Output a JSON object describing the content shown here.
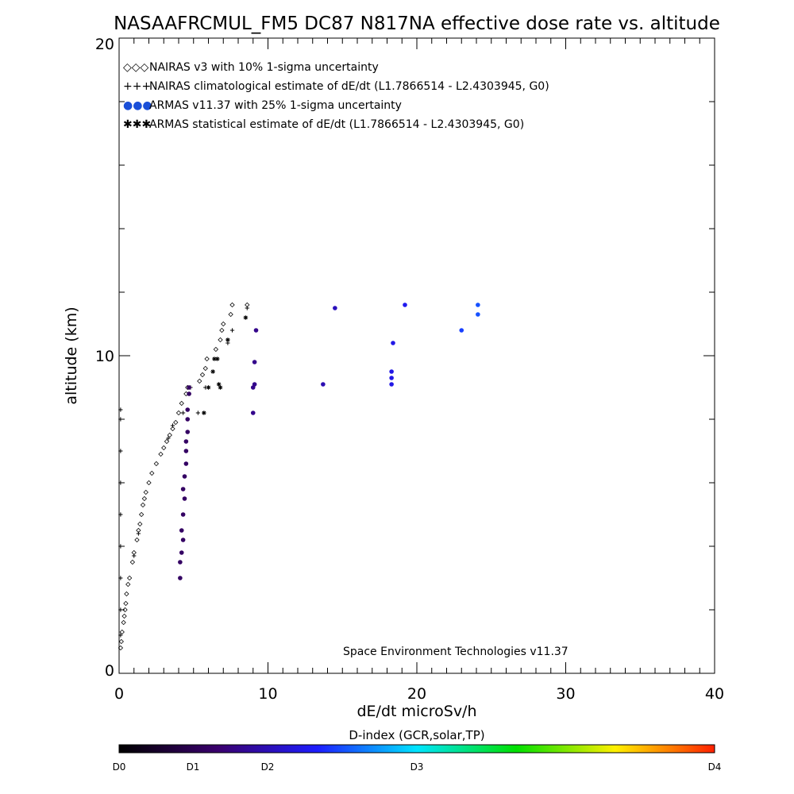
{
  "chart_data": {
    "type": "scatter",
    "title": "NASAAFRCMUL_FM5 DC87 N817NA effective dose rate vs. altitude",
    "xlabel": "dE/dt microSv/h",
    "ylabel": "altitude (km)",
    "xlim": [
      0,
      40
    ],
    "ylim": [
      0,
      20
    ],
    "x_ticks": [
      "0",
      "10",
      "20",
      "30",
      "40"
    ],
    "y_ticks": [
      "0",
      "10",
      "20"
    ],
    "grid": false,
    "legend_position": "top-left",
    "credit": "Space Environment Technologies v11.37",
    "series": [
      {
        "name": "NAIRAS v3 with 10% 1-sigma uncertainty",
        "marker": "◇◇◇",
        "color": "#000000",
        "points": [
          [
            0.1,
            0.8
          ],
          [
            0.15,
            1.0
          ],
          [
            0.2,
            1.3
          ],
          [
            0.3,
            1.6
          ],
          [
            0.35,
            1.8
          ],
          [
            0.4,
            2.0
          ],
          [
            0.45,
            2.2
          ],
          [
            0.5,
            2.5
          ],
          [
            0.6,
            2.8
          ],
          [
            0.7,
            3.0
          ],
          [
            0.9,
            3.5
          ],
          [
            1.0,
            3.8
          ],
          [
            1.2,
            4.2
          ],
          [
            1.3,
            4.5
          ],
          [
            1.4,
            4.7
          ],
          [
            1.5,
            5.0
          ],
          [
            1.6,
            5.3
          ],
          [
            1.7,
            5.5
          ],
          [
            1.8,
            5.7
          ],
          [
            2.0,
            6.0
          ],
          [
            2.2,
            6.3
          ],
          [
            2.5,
            6.6
          ],
          [
            2.8,
            6.9
          ],
          [
            3.0,
            7.1
          ],
          [
            3.2,
            7.3
          ],
          [
            3.4,
            7.5
          ],
          [
            3.6,
            7.7
          ],
          [
            3.8,
            7.9
          ],
          [
            4.0,
            8.2
          ],
          [
            4.2,
            8.5
          ],
          [
            4.5,
            8.8
          ],
          [
            4.6,
            9.0
          ],
          [
            5.4,
            9.2
          ],
          [
            5.6,
            9.4
          ],
          [
            5.8,
            9.6
          ],
          [
            5.9,
            9.9
          ],
          [
            6.5,
            10.2
          ],
          [
            6.8,
            10.5
          ],
          [
            6.9,
            10.8
          ],
          [
            7.0,
            11.0
          ],
          [
            7.5,
            11.3
          ],
          [
            7.6,
            11.6
          ],
          [
            8.6,
            11.6
          ]
        ]
      },
      {
        "name": "NAIRAS climatological estimate of dE/dt (L1.7866514 - L2.4303945, G0)",
        "marker": "+++",
        "color": "#000000",
        "points": [
          [
            0.1,
            1.2
          ],
          [
            0.1,
            2.0
          ],
          [
            0.1,
            3.0
          ],
          [
            0.1,
            4.0
          ],
          [
            0.1,
            5.0
          ],
          [
            0.1,
            6.0
          ],
          [
            0.1,
            7.0
          ],
          [
            0.1,
            8.0
          ],
          [
            0.1,
            8.3
          ],
          [
            1.0,
            3.7
          ],
          [
            1.3,
            4.4
          ],
          [
            3.3,
            7.4
          ],
          [
            3.6,
            7.8
          ],
          [
            4.3,
            8.2
          ],
          [
            4.8,
            9.0
          ],
          [
            5.3,
            8.2
          ],
          [
            5.8,
            9.0
          ],
          [
            7.3,
            10.4
          ],
          [
            7.6,
            10.8
          ],
          [
            8.6,
            11.5
          ]
        ]
      },
      {
        "name": "ARMAS v11.37 with 25% 1-sigma uncertainty",
        "marker": "●●●",
        "color": "#1a4fd8",
        "points": [
          [
            4.1,
            3.0
          ],
          [
            4.1,
            3.5
          ],
          [
            4.2,
            3.8
          ],
          [
            4.3,
            4.2
          ],
          [
            4.2,
            4.5
          ],
          [
            4.3,
            5.0
          ],
          [
            4.4,
            5.5
          ],
          [
            4.3,
            5.8
          ],
          [
            4.4,
            6.2
          ],
          [
            4.5,
            6.6
          ],
          [
            4.5,
            7.0
          ],
          [
            4.5,
            7.3
          ],
          [
            4.6,
            7.6
          ],
          [
            4.6,
            8.0
          ],
          [
            4.6,
            8.3
          ],
          [
            4.7,
            8.8
          ],
          [
            4.7,
            9.0
          ],
          [
            9.0,
            8.2
          ],
          [
            9.0,
            9.0
          ],
          [
            9.1,
            9.1
          ],
          [
            9.1,
            9.8
          ],
          [
            9.2,
            10.8
          ],
          [
            13.7,
            9.1
          ],
          [
            14.5,
            11.5
          ],
          [
            18.3,
            9.1
          ],
          [
            18.3,
            9.3
          ],
          [
            18.3,
            9.5
          ],
          [
            18.4,
            10.4
          ],
          [
            19.2,
            11.6
          ],
          [
            23.0,
            10.8
          ],
          [
            24.1,
            11.3
          ],
          [
            24.1,
            11.6
          ]
        ]
      },
      {
        "name": "ARMAS statistical estimate of dE/dt (L1.7866514 - L2.4303945, G0)",
        "marker": "✱✱✱",
        "color": "#000000",
        "points": [
          [
            5.7,
            8.2
          ],
          [
            6.0,
            9.0
          ],
          [
            6.3,
            9.5
          ],
          [
            6.4,
            9.9
          ],
          [
            6.6,
            9.9
          ],
          [
            6.7,
            9.1
          ],
          [
            6.8,
            9.0
          ],
          [
            7.3,
            10.5
          ],
          [
            8.5,
            11.2
          ]
        ]
      }
    ],
    "colorbar": {
      "title": "D-index (GCR,solar,TP)",
      "labels": [
        "D0",
        "D1",
        "D2",
        "D3",
        "D4"
      ],
      "stops": [
        "#000000",
        "#3a006e",
        "#1d1dff",
        "#00e5ff",
        "#00e000",
        "#fff000",
        "#ff2000"
      ]
    }
  }
}
